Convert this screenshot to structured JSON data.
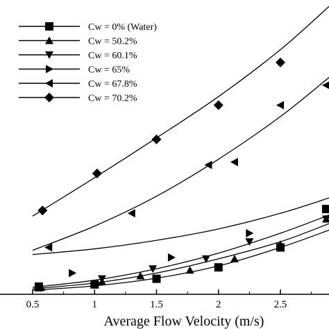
{
  "chart_data": {
    "type": "scatter",
    "title": "",
    "xlabel": "Average Flow Velocity (m/s)",
    "ylabel": "",
    "xlim": [
      0.0,
      2.9
    ],
    "ylim": [
      0.0,
      1.0
    ],
    "x_ticks": [
      {
        "value": 0.5,
        "label": "0.5"
      },
      {
        "value": 1.0,
        "label": "1"
      },
      {
        "value": 1.5,
        "label": "1.5"
      },
      {
        "value": 2.0,
        "label": "2"
      },
      {
        "value": 2.5,
        "label": "2.5"
      }
    ],
    "legend_position": "top-left",
    "grid": false,
    "series": [
      {
        "name": "Cw = 0% (Water)",
        "marker": "square",
        "points": [
          [
            0.55,
            0.01
          ],
          [
            1.0,
            0.02
          ],
          [
            1.5,
            0.04
          ],
          [
            2.0,
            0.08
          ],
          [
            2.5,
            0.15
          ],
          [
            2.9,
            0.285
          ]
        ],
        "curve": [
          [
            0.5,
            0.0
          ],
          [
            1.0,
            0.015
          ],
          [
            1.5,
            0.042
          ],
          [
            2.0,
            0.085
          ],
          [
            2.5,
            0.15
          ],
          [
            2.9,
            0.212
          ]
        ]
      },
      {
        "name": "Cw = 50.2%",
        "marker": "triangle-up",
        "points": [
          [
            0.57,
            0.01
          ],
          [
            1.06,
            0.03
          ],
          [
            1.37,
            0.05
          ],
          [
            1.77,
            0.07
          ],
          [
            2.13,
            0.11
          ],
          [
            2.5,
            0.16
          ],
          [
            2.9,
            0.25
          ]
        ],
        "curve": [
          [
            0.5,
            0.005
          ],
          [
            1.0,
            0.025
          ],
          [
            1.5,
            0.06
          ],
          [
            2.0,
            0.11
          ],
          [
            2.5,
            0.17
          ],
          [
            2.9,
            0.235
          ]
        ]
      },
      {
        "name": "Cw = 60.1%",
        "marker": "triangle-down",
        "points": [
          [
            0.55,
            0.015
          ],
          [
            1.06,
            0.04
          ],
          [
            1.47,
            0.075
          ],
          [
            1.9,
            0.11
          ],
          [
            2.25,
            0.17
          ],
          [
            2.9,
            0.25
          ]
        ],
        "curve": [
          [
            0.5,
            0.01
          ],
          [
            1.0,
            0.035
          ],
          [
            1.5,
            0.075
          ],
          [
            2.0,
            0.13
          ],
          [
            2.5,
            0.2
          ],
          [
            2.9,
            0.265
          ]
        ]
      },
      {
        "name": "Cw = 65%",
        "marker": "triangle-right",
        "points": [
          [
            0.82,
            0.06
          ],
          [
            1.62,
            0.115
          ],
          [
            2.25,
            0.2
          ],
          [
            2.9,
            0.285
          ]
        ],
        "curve": [
          [
            0.5,
            0.125
          ],
          [
            1.0,
            0.145
          ],
          [
            1.5,
            0.175
          ],
          [
            2.0,
            0.215
          ],
          [
            2.5,
            0.27
          ],
          [
            2.9,
            0.325
          ]
        ]
      },
      {
        "name": "Cw = 67.8%",
        "marker": "triangle-left",
        "points": [
          [
            0.63,
            0.15
          ],
          [
            1.3,
            0.27
          ],
          [
            1.92,
            0.44
          ],
          [
            2.13,
            0.45
          ],
          [
            2.5,
            0.65
          ],
          [
            2.9,
            0.72
          ]
        ],
        "curve": [
          [
            0.5,
            0.14
          ],
          [
            1.0,
            0.225
          ],
          [
            1.5,
            0.33
          ],
          [
            2.0,
            0.46
          ],
          [
            2.5,
            0.61
          ],
          [
            2.9,
            0.75
          ]
        ]
      },
      {
        "name": "Cw = 70.2%",
        "marker": "diamond",
        "points": [
          [
            0.58,
            0.28
          ],
          [
            1.02,
            0.41
          ],
          [
            1.5,
            0.53
          ],
          [
            2.0,
            0.65
          ],
          [
            2.5,
            0.8
          ]
        ],
        "curve": [
          [
            0.5,
            0.26
          ],
          [
            1.0,
            0.395
          ],
          [
            1.5,
            0.535
          ],
          [
            2.0,
            0.68
          ],
          [
            2.5,
            0.845
          ],
          [
            2.9,
            1.0
          ]
        ]
      }
    ]
  }
}
